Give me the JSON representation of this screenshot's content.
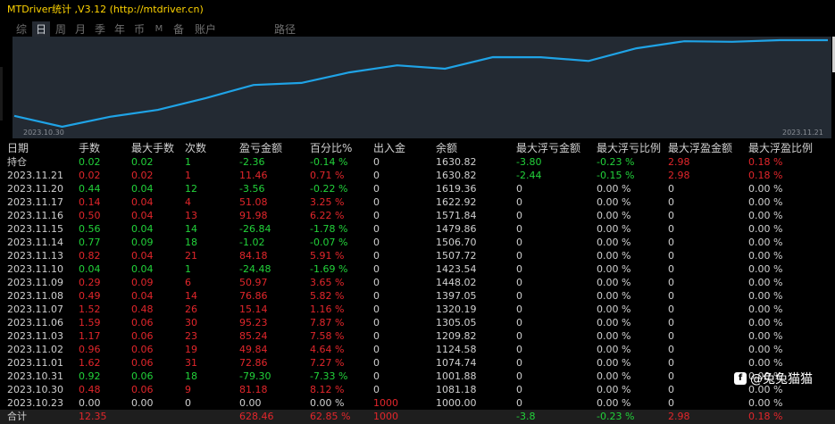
{
  "app": {
    "title": "MTDriver统计 ,V3.12 (http://mtdriver.cn)"
  },
  "tabs": [
    {
      "label": "综"
    },
    {
      "label": "日"
    },
    {
      "label": "周"
    },
    {
      "label": "月"
    },
    {
      "label": "季"
    },
    {
      "label": "年"
    },
    {
      "label": "币"
    },
    {
      "label": "M"
    },
    {
      "label": "备"
    },
    {
      "label": "账户"
    },
    {
      "label": "路径"
    }
  ],
  "active_tab": "日",
  "chart_data": {
    "type": "line",
    "x": [
      "2023.10.30",
      "2023.10.31",
      "2023.11.01",
      "2023.11.02",
      "2023.11.03",
      "2023.11.06",
      "2023.11.07",
      "2023.11.08",
      "2023.11.09",
      "2023.11.10",
      "2023.11.13",
      "2023.11.14",
      "2023.11.15",
      "2023.11.16",
      "2023.11.17",
      "2023.11.20",
      "2023.11.21",
      "current"
    ],
    "values": [
      1081.18,
      1001.88,
      1074.74,
      1124.58,
      1209.82,
      1305.05,
      1320.19,
      1397.05,
      1448.02,
      1423.54,
      1507.72,
      1506.7,
      1479.86,
      1571.84,
      1622.92,
      1619.36,
      1630.82,
      1630.82
    ],
    "x_start_label": "2023.10.30",
    "x_end_label": "2023.11.21",
    "grid": false,
    "line_color": "#1fa3e6"
  },
  "table": {
    "headers": [
      "日期",
      "手数",
      "最大手数",
      "次数",
      "盈亏金额",
      "百分比%",
      "出入金",
      "余额",
      "最大浮亏金额",
      "最大浮亏比例",
      "最大浮盈金额",
      "最大浮盈比例"
    ],
    "rows": [
      {
        "cells": [
          "持仓",
          "0.02",
          "0.02",
          "1",
          "-2.36",
          "-0.14 %",
          "0",
          "1630.82",
          "-3.80",
          "-0.23 %",
          "2.98",
          "0.18 %"
        ],
        "colors": [
          "w",
          "g",
          "g",
          "g",
          "g",
          "g",
          "w",
          "w",
          "g",
          "g",
          "r",
          "r"
        ]
      },
      {
        "cells": [
          "2023.11.21",
          "0.02",
          "0.02",
          "1",
          "11.46",
          "0.71 %",
          "0",
          "1630.82",
          "-2.44",
          "-0.15 %",
          "2.98",
          "0.18 %"
        ],
        "colors": [
          "w",
          "r",
          "r",
          "r",
          "r",
          "r",
          "w",
          "w",
          "g",
          "g",
          "r",
          "r"
        ]
      },
      {
        "cells": [
          "2023.11.20",
          "0.44",
          "0.04",
          "12",
          "-3.56",
          "-0.22 %",
          "0",
          "1619.36",
          "0",
          "0.00 %",
          "0",
          "0.00 %"
        ],
        "colors": [
          "w",
          "g",
          "g",
          "g",
          "g",
          "g",
          "w",
          "w",
          "w",
          "w",
          "w",
          "w"
        ]
      },
      {
        "cells": [
          "2023.11.17",
          "0.14",
          "0.04",
          "4",
          "51.08",
          "3.25 %",
          "0",
          "1622.92",
          "0",
          "0.00 %",
          "0",
          "0.00 %"
        ],
        "colors": [
          "w",
          "r",
          "r",
          "r",
          "r",
          "r",
          "w",
          "w",
          "w",
          "w",
          "w",
          "w"
        ]
      },
      {
        "cells": [
          "2023.11.16",
          "0.50",
          "0.04",
          "13",
          "91.98",
          "6.22 %",
          "0",
          "1571.84",
          "0",
          "0.00 %",
          "0",
          "0.00 %"
        ],
        "colors": [
          "w",
          "r",
          "r",
          "r",
          "r",
          "r",
          "w",
          "w",
          "w",
          "w",
          "w",
          "w"
        ]
      },
      {
        "cells": [
          "2023.11.15",
          "0.56",
          "0.04",
          "14",
          "-26.84",
          "-1.78 %",
          "0",
          "1479.86",
          "0",
          "0.00 %",
          "0",
          "0.00 %"
        ],
        "colors": [
          "w",
          "g",
          "g",
          "g",
          "g",
          "g",
          "w",
          "w",
          "w",
          "w",
          "w",
          "w"
        ]
      },
      {
        "cells": [
          "2023.11.14",
          "0.77",
          "0.09",
          "18",
          "-1.02",
          "-0.07 %",
          "0",
          "1506.70",
          "0",
          "0.00 %",
          "0",
          "0.00 %"
        ],
        "colors": [
          "w",
          "g",
          "g",
          "g",
          "g",
          "g",
          "w",
          "w",
          "w",
          "w",
          "w",
          "w"
        ]
      },
      {
        "cells": [
          "2023.11.13",
          "0.82",
          "0.04",
          "21",
          "84.18",
          "5.91 %",
          "0",
          "1507.72",
          "0",
          "0.00 %",
          "0",
          "0.00 %"
        ],
        "colors": [
          "w",
          "r",
          "r",
          "r",
          "r",
          "r",
          "w",
          "w",
          "w",
          "w",
          "w",
          "w"
        ]
      },
      {
        "cells": [
          "2023.11.10",
          "0.04",
          "0.04",
          "1",
          "-24.48",
          "-1.69 %",
          "0",
          "1423.54",
          "0",
          "0.00 %",
          "0",
          "0.00 %"
        ],
        "colors": [
          "w",
          "g",
          "g",
          "g",
          "g",
          "g",
          "w",
          "w",
          "w",
          "w",
          "w",
          "w"
        ]
      },
      {
        "cells": [
          "2023.11.09",
          "0.29",
          "0.09",
          "6",
          "50.97",
          "3.65 %",
          "0",
          "1448.02",
          "0",
          "0.00 %",
          "0",
          "0.00 %"
        ],
        "colors": [
          "w",
          "r",
          "r",
          "r",
          "r",
          "r",
          "w",
          "w",
          "w",
          "w",
          "w",
          "w"
        ]
      },
      {
        "cells": [
          "2023.11.08",
          "0.49",
          "0.04",
          "14",
          "76.86",
          "5.82 %",
          "0",
          "1397.05",
          "0",
          "0.00 %",
          "0",
          "0.00 %"
        ],
        "colors": [
          "w",
          "r",
          "r",
          "r",
          "r",
          "r",
          "w",
          "w",
          "w",
          "w",
          "w",
          "w"
        ]
      },
      {
        "cells": [
          "2023.11.07",
          "1.52",
          "0.48",
          "26",
          "15.14",
          "1.16 %",
          "0",
          "1320.19",
          "0",
          "0.00 %",
          "0",
          "0.00 %"
        ],
        "colors": [
          "w",
          "r",
          "r",
          "r",
          "r",
          "r",
          "w",
          "w",
          "w",
          "w",
          "w",
          "w"
        ]
      },
      {
        "cells": [
          "2023.11.06",
          "1.59",
          "0.06",
          "30",
          "95.23",
          "7.87 %",
          "0",
          "1305.05",
          "0",
          "0.00 %",
          "0",
          "0.00 %"
        ],
        "colors": [
          "w",
          "r",
          "r",
          "r",
          "r",
          "r",
          "w",
          "w",
          "w",
          "w",
          "w",
          "w"
        ]
      },
      {
        "cells": [
          "2023.11.03",
          "1.17",
          "0.06",
          "23",
          "85.24",
          "7.58 %",
          "0",
          "1209.82",
          "0",
          "0.00 %",
          "0",
          "0.00 %"
        ],
        "colors": [
          "w",
          "r",
          "r",
          "r",
          "r",
          "r",
          "w",
          "w",
          "w",
          "w",
          "w",
          "w"
        ]
      },
      {
        "cells": [
          "2023.11.02",
          "0.96",
          "0.06",
          "19",
          "49.84",
          "4.64 %",
          "0",
          "1124.58",
          "0",
          "0.00 %",
          "0",
          "0.00 %"
        ],
        "colors": [
          "w",
          "r",
          "r",
          "r",
          "r",
          "r",
          "w",
          "w",
          "w",
          "w",
          "w",
          "w"
        ]
      },
      {
        "cells": [
          "2023.11.01",
          "1.62",
          "0.06",
          "31",
          "72.86",
          "7.27 %",
          "0",
          "1074.74",
          "0",
          "0.00 %",
          "0",
          "0.00 %"
        ],
        "colors": [
          "w",
          "r",
          "r",
          "r",
          "r",
          "r",
          "w",
          "w",
          "w",
          "w",
          "w",
          "w"
        ]
      },
      {
        "cells": [
          "2023.10.31",
          "0.92",
          "0.06",
          "18",
          "-79.30",
          "-7.33 %",
          "0",
          "1001.88",
          "0",
          "0.00 %",
          "0",
          "0.00 %"
        ],
        "colors": [
          "w",
          "g",
          "g",
          "g",
          "g",
          "g",
          "w",
          "w",
          "w",
          "w",
          "w",
          "w"
        ]
      },
      {
        "cells": [
          "2023.10.30",
          "0.48",
          "0.06",
          "9",
          "81.18",
          "8.12 %",
          "0",
          "1081.18",
          "0",
          "0.00 %",
          "0",
          "0.00 %"
        ],
        "colors": [
          "w",
          "r",
          "r",
          "r",
          "r",
          "r",
          "w",
          "w",
          "w",
          "w",
          "w",
          "w"
        ]
      },
      {
        "cells": [
          "2023.10.23",
          "0.00",
          "0.00",
          "0",
          "0.00",
          "0.00 %",
          "1000",
          "1000.00",
          "0",
          "0.00 %",
          "0",
          "0.00 %"
        ],
        "colors": [
          "w",
          "w",
          "w",
          "w",
          "w",
          "w",
          "r",
          "w",
          "w",
          "w",
          "w",
          "w"
        ]
      }
    ],
    "total": {
      "cells": [
        "合计",
        "12.35",
        "",
        "",
        "628.46",
        "62.85 %",
        "1000",
        "",
        "-3.8",
        "-0.23 %",
        "2.98",
        "0.18 %"
      ],
      "colors": [
        "w",
        "r",
        "w",
        "w",
        "r",
        "r",
        "r",
        "w",
        "g",
        "g",
        "r",
        "r"
      ]
    }
  },
  "watermark": {
    "text": "@兔兔猫猫",
    "icon": "weibo-icon"
  },
  "colors": {
    "positive": "#e2262b",
    "negative": "#22d23a",
    "accent": "#ffd400",
    "line": "#1fa3e6"
  }
}
